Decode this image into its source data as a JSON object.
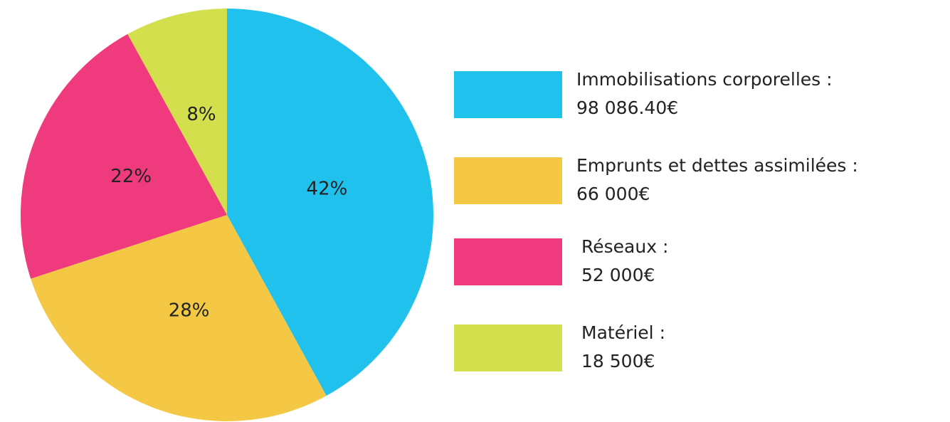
{
  "chart_data": {
    "type": "pie",
    "categories": [
      "Immobilisations corporelles :",
      "Emprunts et dettes assimilées :",
      "Réseaux :",
      "Matériel :"
    ],
    "legend_amounts": [
      "98 086.40€",
      "66 000€",
      "52 000€",
      "18 500€"
    ],
    "values": [
      42,
      28,
      22,
      8
    ],
    "value_labels": [
      "42%",
      "28%",
      "22%",
      "8%"
    ],
    "colors": [
      "#20c1ed",
      "#f4c844",
      "#ef3a7d",
      "#d3df4d"
    ],
    "legend": "right"
  }
}
